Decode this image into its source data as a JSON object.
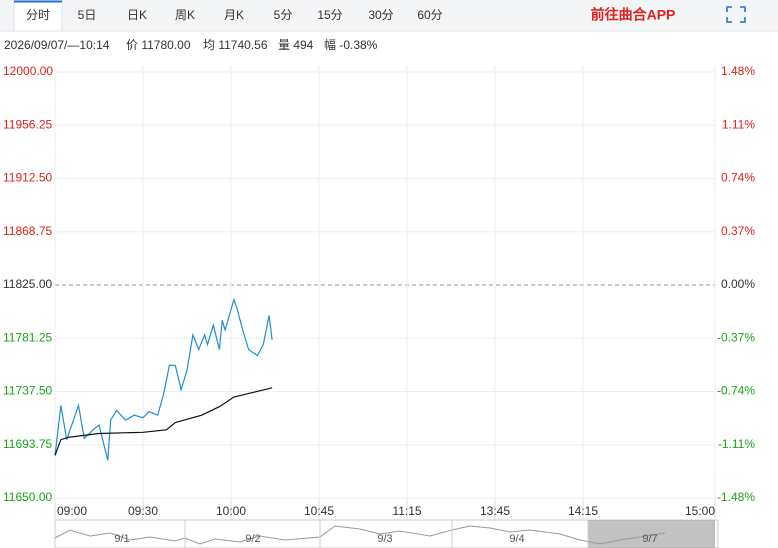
{
  "header": {
    "tabs": [
      "分时",
      "5日",
      "日K",
      "周K",
      "月K",
      "5分",
      "15分",
      "30分",
      "60分"
    ],
    "app_link": "前往曲合APP",
    "info": [
      "2026/09/07/—10:14",
      "价 11780.00",
      "均 11740.56",
      "量 494",
      "幅 -0.38%"
    ]
  },
  "chart_data": {
    "type": "line",
    "xlim": [
      0,
      225
    ],
    "xticks": [
      {
        "value": 0,
        "label": "09:00"
      },
      {
        "value": 30,
        "label": "09:30"
      },
      {
        "value": 60,
        "label": "10:00"
      },
      {
        "value": 90,
        "label": "10:45"
      },
      {
        "value": 120,
        "label": "11:15"
      },
      {
        "value": 150,
        "label": "13:45"
      },
      {
        "value": 180,
        "label": "14:15"
      },
      {
        "value": 225,
        "label": "15:00"
      }
    ],
    "ylim": [
      11650,
      12000
    ],
    "yticks": [
      {
        "value": 12000,
        "label": "12000.00"
      },
      {
        "value": 11956.25,
        "label": "11956.25"
      },
      {
        "value": 11912.5,
        "label": "11912.50"
      },
      {
        "value": 11868.75,
        "label": "11868.75"
      },
      {
        "value": 11825,
        "label": "11825.00"
      },
      {
        "value": 11781.25,
        "label": "11781.25"
      },
      {
        "value": 11737.5,
        "label": "11737.50"
      },
      {
        "value": 11693.75,
        "label": "11693.75"
      },
      {
        "value": 11650,
        "label": "11650.00"
      }
    ],
    "y2lim": [
      -1.48,
      1.48
    ],
    "y2ticks": [
      {
        "value": 1.48,
        "label": "1.48%"
      },
      {
        "value": 1.11,
        "label": "1.11%"
      },
      {
        "value": 0.74,
        "label": "0.74%"
      },
      {
        "value": 0.37,
        "label": "0.37%"
      },
      {
        "value": 0,
        "label": "0.00%"
      },
      {
        "value": -0.37,
        "label": "-0.37%"
      },
      {
        "value": -0.74,
        "label": "-0.74%"
      },
      {
        "value": -1.11,
        "label": "-1.11%"
      },
      {
        "value": -1.48,
        "label": "-1.48%"
      }
    ],
    "grid": true,
    "series": [
      {
        "color": "#1f8fcf",
        "x": [
          0,
          2,
          4,
          8,
          10,
          13,
          15,
          18,
          19,
          21,
          24,
          27,
          30,
          32,
          35,
          37,
          39,
          41,
          43,
          45,
          47,
          49,
          51,
          52,
          54,
          56,
          57,
          58,
          61,
          62,
          64,
          66,
          69,
          71,
          73,
          74
        ],
        "values": [
          11685,
          11726,
          11698,
          11726,
          11699,
          11706,
          11710,
          11681,
          11714,
          11722,
          11714,
          11718,
          11716,
          11721,
          11718,
          11735,
          11759,
          11759,
          11739,
          11755,
          11784,
          11772,
          11784,
          11776,
          11792,
          11772,
          11796,
          11788,
          11813,
          11806,
          11788,
          11772,
          11767,
          11776,
          11800,
          11780
        ]
      },
      {
        "color": "#111111",
        "x": [
          0,
          2,
          5,
          15,
          30,
          38,
          41,
          50,
          56,
          61,
          68,
          74
        ],
        "values": [
          11685,
          11698,
          11700,
          11703,
          11704,
          11706,
          11712,
          11718,
          11725,
          11733,
          11737,
          11740.56
        ]
      }
    ]
  },
  "navigator": {
    "dates": [
      "9/1",
      "9/2",
      "9/3",
      "9/4",
      "9/7"
    ]
  }
}
